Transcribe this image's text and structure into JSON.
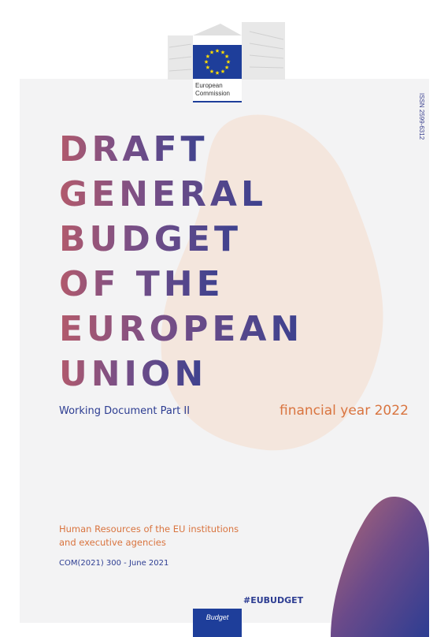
{
  "logo": {
    "line1": "European",
    "line2": "Commission"
  },
  "issn": "ISSN 2599-6312",
  "title": {
    "lines": [
      "DRAFT",
      "GENERAL",
      "BUDGET",
      "OF THE",
      "EUROPEAN",
      "UNION"
    ]
  },
  "subtitle": "Working Document Part II",
  "year": "financial year 2022",
  "topic": {
    "lines": [
      "Human Resources of the EU institutions",
      "and executive agencies"
    ]
  },
  "reference": "COM(2021) 300  - June 2021",
  "hashtag": "#EUBUDGET",
  "tab": "Budget"
}
